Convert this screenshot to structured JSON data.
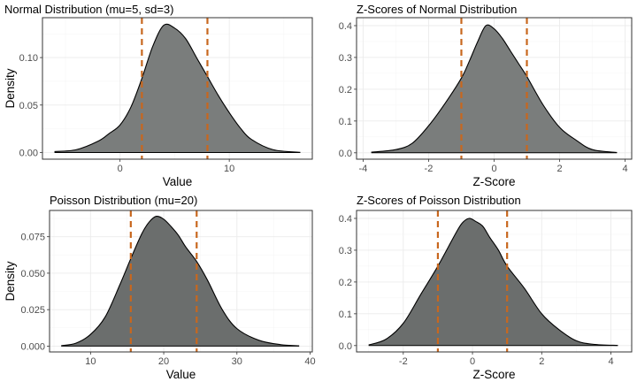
{
  "chart_data": [
    {
      "type": "area",
      "title": "Normal Distribution (mu=5, sd=3)",
      "xlabel": "Value",
      "ylabel": "Density",
      "xlim": [
        -7.1,
        17.6
      ],
      "ylim": [
        -0.007,
        0.142
      ],
      "x_ticks": [
        0,
        10
      ],
      "x_tick_labels": [
        "0",
        "10"
      ],
      "y_ticks": [
        0,
        0.05,
        0.1
      ],
      "y_tick_labels": [
        "0.00",
        "0.05",
        "0.10"
      ],
      "x": [
        -6,
        -4,
        -2,
        -1,
        0,
        1,
        2,
        3,
        4,
        5,
        6,
        7,
        8,
        9,
        10,
        11,
        12,
        14,
        16.5
      ],
      "y": [
        0.001,
        0.003,
        0.012,
        0.02,
        0.029,
        0.048,
        0.078,
        0.112,
        0.134,
        0.131,
        0.12,
        0.1,
        0.08,
        0.06,
        0.042,
        0.026,
        0.014,
        0.003,
        0.0002
      ],
      "vlines": [
        2,
        8
      ],
      "fill_color": "#7a7d7c",
      "line_color": "#000000",
      "vline_color": "#c8671e",
      "grid": true
    },
    {
      "type": "area",
      "title": "Z-Scores of Normal Distribution",
      "xlabel": "Z-Score",
      "ylabel": "",
      "xlim": [
        -4.2,
        4.2
      ],
      "ylim": [
        -0.02,
        0.425
      ],
      "x_ticks": [
        -4,
        -2,
        0,
        2,
        4
      ],
      "x_tick_labels": [
        "-4",
        "-2",
        "0",
        "2",
        "4"
      ],
      "y_ticks": [
        0,
        0.1,
        0.2,
        0.3,
        0.4
      ],
      "y_tick_labels": [
        "0.0",
        "0.1",
        "0.2",
        "0.3",
        "0.4"
      ],
      "x": [
        -3.75,
        -3,
        -2.5,
        -2,
        -1.5,
        -1,
        -0.75,
        -0.5,
        -0.25,
        0,
        0.25,
        0.5,
        0.75,
        1,
        1.5,
        2,
        2.5,
        3,
        3.75
      ],
      "y": [
        0.002,
        0.01,
        0.03,
        0.085,
        0.155,
        0.235,
        0.29,
        0.35,
        0.4,
        0.39,
        0.36,
        0.32,
        0.28,
        0.24,
        0.15,
        0.08,
        0.04,
        0.01,
        0.001
      ],
      "vlines": [
        -1,
        1
      ],
      "fill_color": "#7a7d7c",
      "line_color": "#000000",
      "vline_color": "#c8671e",
      "grid": true
    },
    {
      "type": "area",
      "title": "Poisson Distribution (mu=20)",
      "xlabel": "Value",
      "ylabel": "Density",
      "xlim": [
        4.4,
        40.3
      ],
      "ylim": [
        -0.004,
        0.093
      ],
      "x_ticks": [
        10,
        20,
        30,
        40
      ],
      "x_tick_labels": [
        "10",
        "20",
        "30",
        "40"
      ],
      "y_ticks": [
        0,
        0.025,
        0.05,
        0.075
      ],
      "y_tick_labels": [
        "0.000",
        "0.025",
        "0.050",
        "0.075"
      ],
      "x": [
        6,
        8,
        10,
        12,
        14,
        15.5,
        17,
        18,
        19,
        20,
        21,
        22,
        23,
        24.5,
        26,
        28,
        30,
        33,
        36,
        38.5
      ],
      "y": [
        0.0003,
        0.002,
        0.008,
        0.02,
        0.042,
        0.06,
        0.077,
        0.085,
        0.089,
        0.087,
        0.082,
        0.076,
        0.068,
        0.058,
        0.045,
        0.025,
        0.012,
        0.004,
        0.001,
        0.0002
      ],
      "vlines": [
        15.5,
        24.5
      ],
      "fill_color": "#6b6e6d",
      "line_color": "#000000",
      "vline_color": "#c8671e",
      "grid": true
    },
    {
      "type": "area",
      "title": "Z-Scores of Poisson Distribution",
      "xlabel": "Z-Score",
      "ylabel": "",
      "xlim": [
        -3.35,
        4.6
      ],
      "ylim": [
        -0.02,
        0.425
      ],
      "x_ticks": [
        -2,
        0,
        2,
        4
      ],
      "x_tick_labels": [
        "-2",
        "0",
        "2",
        "4"
      ],
      "y_ticks": [
        0,
        0.1,
        0.2,
        0.3,
        0.4
      ],
      "y_tick_labels": [
        "0.0",
        "0.1",
        "0.2",
        "0.3",
        "0.4"
      ],
      "x": [
        -3,
        -2.5,
        -2,
        -1.5,
        -1,
        -0.5,
        -0.3,
        -0.1,
        0.1,
        0.3,
        0.5,
        0.75,
        1,
        1.5,
        2,
        2.5,
        3,
        3.5,
        4.2
      ],
      "y": [
        0.002,
        0.02,
        0.07,
        0.16,
        0.25,
        0.35,
        0.385,
        0.4,
        0.39,
        0.375,
        0.34,
        0.3,
        0.25,
        0.18,
        0.1,
        0.05,
        0.015,
        0.004,
        0.0005
      ],
      "vlines": [
        -1,
        1
      ],
      "fill_color": "#6b6e6d",
      "line_color": "#000000",
      "vline_color": "#c8671e",
      "grid": true
    }
  ]
}
